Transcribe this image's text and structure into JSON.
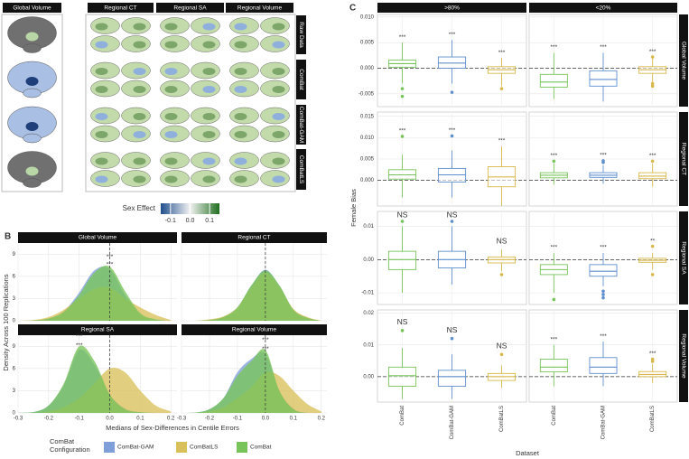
{
  "panel_labels": [
    "A",
    "B",
    "C"
  ],
  "brain_panel": {
    "columns": [
      "Global Volume",
      "Regional CT",
      "Regional SA",
      "Regional Volume"
    ],
    "rows": [
      "Raw Data",
      "ComBat",
      "ComBat-GAM",
      "ComBatLS"
    ],
    "colorbar": {
      "title": "Sex Effect",
      "lim": [
        -0.15,
        0.15
      ],
      "ticks": [
        -0.1,
        {
          "value": 0,
          "label": "0.0"
        },
        0.1
      ]
    }
  },
  "chart_data": [
    {
      "type": "density",
      "xlabel": "Medians of Sex-Differences in Centile Errors",
      "ylabel": "Density Across 100 Replications",
      "xlim": [
        -0.3,
        0.22
      ],
      "xticks": [
        -0.3,
        -0.2,
        -0.1,
        {
          "value": 0,
          "label": "0.0"
        },
        0.1,
        0.2
      ],
      "ylim": [
        0,
        10.5
      ],
      "yticks": [
        0,
        3,
        6,
        9
      ],
      "grid": true,
      "reference_x": 0,
      "legend": {
        "title": [
          "ComBat",
          "Configuration"
        ],
        "series": [
          {
            "name": "ComBat-GAM",
            "color": "#7f9fd8"
          },
          {
            "name": "ComBatLS",
            "color": "#d8c05a"
          },
          {
            "name": "ComBat",
            "color": "#78c45a"
          }
        ]
      },
      "x": [
        -0.3,
        -0.25,
        -0.2,
        -0.15,
        -0.1,
        -0.05,
        0,
        0.05,
        0.1,
        0.15,
        0.2
      ],
      "facets": [
        {
          "title": "Global Volume",
          "series": [
            {
              "values": [
                0,
                0.05,
                0.3,
                1.3,
                3.8,
                6.8,
                7,
                3.5,
                0.8,
                0.1,
                0
              ],
              "significance": "***"
            },
            {
              "values": [
                0,
                0.1,
                0.5,
                1.5,
                3,
                4.3,
                4.5,
                3,
                1.8,
                0.8,
                0.1
              ],
              "significance": "**"
            },
            {
              "values": [
                0,
                0.05,
                0.3,
                1.2,
                3.5,
                6.5,
                7.3,
                4,
                1,
                0.2,
                0
              ],
              "significance": "***"
            }
          ]
        },
        {
          "title": "Regional CT",
          "series": [
            {
              "values": [
                0,
                0,
                0.1,
                0.5,
                1.8,
                4.7,
                6.9,
                4.7,
                1.5,
                0.4,
                0
              ],
              "significance": null
            },
            {
              "values": [
                0,
                0,
                0.2,
                0.6,
                1.8,
                4.5,
                6.5,
                4.6,
                1.6,
                0.5,
                0
              ],
              "significance": null
            },
            {
              "values": [
                0,
                0,
                0.1,
                0.5,
                1.8,
                4.8,
                6.8,
                4.8,
                1.5,
                0.4,
                0
              ],
              "significance": null
            }
          ]
        },
        {
          "title": "Regional SA",
          "series": [
            {
              "values": [
                0,
                0.1,
                1,
                3.8,
                8.5,
                6.5,
                2.5,
                0.6,
                0.1,
                0,
                0
              ],
              "significance": "***"
            },
            {
              "values": [
                0,
                0,
                0.2,
                0.8,
                2,
                4,
                6,
                5.5,
                3,
                1,
                0.2
              ],
              "significance": null
            },
            {
              "values": [
                0,
                0.1,
                1,
                4,
                9,
                7,
                2.5,
                0.5,
                0.1,
                0,
                0
              ],
              "significance": "***"
            }
          ]
        },
        {
          "title": "Regional Volume",
          "series": [
            {
              "values": [
                0,
                0.05,
                0.5,
                2,
                5.5,
                7.3,
                8,
                3,
                0.6,
                0,
                0
              ],
              "significance": "***"
            },
            {
              "values": [
                0,
                0,
                0.2,
                0.8,
                2,
                3.5,
                5.5,
                5,
                3,
                1.2,
                0.2
              ],
              "significance": null
            },
            {
              "values": [
                0,
                0.05,
                0.5,
                2,
                5,
                7,
                8.5,
                3,
                0.5,
                0,
                0
              ],
              "significance": "***"
            }
          ]
        }
      ]
    },
    {
      "type": "box",
      "xlabel": "Dataset",
      "ylabel": "Female Bias",
      "categories": [
        "ComBat",
        "ComBat-GAM",
        "ComBatLS"
      ],
      "colors": [
        "#78c45a",
        "#5f8fcf",
        "#d8b84a"
      ],
      "columns": [
        ">80%",
        "<20%"
      ],
      "reference_line": 0,
      "grid": true,
      "rows": [
        {
          "title": "Global Volume",
          "ylim": [
            -0.0075,
            0.0105
          ],
          "yticks": [
            -0.005,
            {
              "value": 0,
              "label": "0.000"
            },
            0.005,
            {
              "value": 0.01,
              "label": "0.010"
            }
          ],
          "panels": [
            [
              {
                "low": -0.003,
                "q1": 0.0002,
                "median": 0.0009,
                "q3": 0.0016,
                "high": 0.005,
                "outliers": [
                  -0.004,
                  -0.0055
                ],
                "label": "***"
              },
              {
                "low": -0.003,
                "q1": 0,
                "median": 0.001,
                "q3": 0.0022,
                "high": 0.0055,
                "outliers": [
                  -0.0047
                ],
                "label": "***"
              },
              {
                "low": -0.0035,
                "q1": -0.001,
                "median": -0.0003,
                "q3": 0.0003,
                "high": 0.002,
                "outliers": [
                  -0.004
                ],
                "label": "***"
              }
            ],
            [
              {
                "low": -0.006,
                "q1": -0.0037,
                "median": -0.0027,
                "q3": -0.0012,
                "high": 0.003,
                "outliers": [],
                "label": "***"
              },
              {
                "low": -0.0065,
                "q1": -0.0035,
                "median": -0.0022,
                "q3": -0.0005,
                "high": 0.003,
                "outliers": [],
                "label": "***"
              },
              {
                "low": -0.003,
                "q1": -0.001,
                "median": -0.0003,
                "q3": 0.0003,
                "high": 0.002,
                "outliers": [
                  -0.003,
                  -0.0035,
                  0.0022
                ],
                "label": "***"
              }
            ]
          ]
        },
        {
          "title": "Regional CT",
          "ylim": [
            -0.006,
            0.016
          ],
          "yticks": [
            {
              "value": 0,
              "label": "0.000"
            },
            0.005,
            {
              "value": 0.01,
              "label": "0.010"
            },
            0.015
          ],
          "panels": [
            [
              {
                "low": -0.004,
                "q1": 0.0003,
                "median": 0.0013,
                "q3": 0.0025,
                "high": 0.006,
                "outliers": [
                  0.0103
                ],
                "label": "***"
              },
              {
                "low": -0.004,
                "q1": -0.0004,
                "median": 0.0013,
                "q3": 0.0028,
                "high": 0.007,
                "outliers": [
                  0.0104
                ],
                "label": "***"
              },
              {
                "low": -0.006,
                "q1": -0.0015,
                "median": 0.0008,
                "q3": 0.0032,
                "high": 0.008,
                "outliers": [],
                "label": "***"
              }
            ],
            [
              {
                "low": -0.001,
                "q1": 0.0006,
                "median": 0.0012,
                "q3": 0.0018,
                "high": 0.004,
                "outliers": [
                  0.0045
                ],
                "label": "***"
              },
              {
                "low": -0.0008,
                "q1": 0.0007,
                "median": 0.0012,
                "q3": 0.0018,
                "high": 0.0035,
                "outliers": [
                  0.0042,
                  0.0046
                ],
                "label": "***"
              },
              {
                "low": -0.0015,
                "q1": 0.0004,
                "median": 0.001,
                "q3": 0.0018,
                "high": 0.004,
                "outliers": [
                  0.0045
                ],
                "label": "***"
              }
            ]
          ]
        },
        {
          "title": "Regional SA",
          "ylim": [
            -0.0135,
            0.0145
          ],
          "yticks": [
            -0.01,
            {
              "value": 0,
              "label": "0.00"
            },
            0.01
          ],
          "panels": [
            [
              {
                "low": -0.01,
                "q1": -0.003,
                "median": 0,
                "q3": 0.0025,
                "high": 0.01,
                "outliers": [
                  0.0115
                ],
                "label": "NS"
              },
              {
                "low": -0.0075,
                "q1": -0.0025,
                "median": 0,
                "q3": 0.0025,
                "high": 0.01,
                "outliers": [
                  0.0115
                ],
                "label": "NS"
              },
              {
                "low": -0.0035,
                "q1": -0.001,
                "median": 0,
                "q3": 0.0008,
                "high": 0.003,
                "outliers": [
                  -0.0045
                ],
                "label": "NS"
              }
            ],
            [
              {
                "low": -0.01,
                "q1": -0.0045,
                "median": -0.003,
                "q3": -0.0015,
                "high": 0.002,
                "outliers": [
                  -0.012
                ],
                "label": "***"
              },
              {
                "low": -0.008,
                "q1": -0.005,
                "median": -0.0035,
                "q3": -0.0015,
                "high": 0.002,
                "outliers": [
                  -0.0095,
                  -0.0105,
                  -0.0115
                ],
                "label": "***"
              },
              {
                "low": -0.003,
                "q1": -0.0008,
                "median": -0.0002,
                "q3": 0.0004,
                "high": 0.002,
                "outliers": [
                  0.004,
                  -0.0045
                ],
                "label": "**"
              }
            ]
          ]
        },
        {
          "title": "Regional Volume",
          "ylim": [
            -0.008,
            0.021
          ],
          "yticks": [
            {
              "value": 0,
              "label": "0.00"
            },
            0.01,
            0.02
          ],
          "panels": [
            [
              {
                "low": -0.007,
                "q1": -0.003,
                "median": 0.0003,
                "q3": 0.003,
                "high": 0.009,
                "outliers": [
                  0.0145
                ],
                "label": "NS"
              },
              {
                "low": -0.007,
                "q1": -0.003,
                "median": 0,
                "q3": 0.002,
                "high": 0.007,
                "outliers": [
                  0.012
                ],
                "label": "NS"
              },
              {
                "low": -0.0035,
                "q1": -0.0012,
                "median": 0,
                "q3": 0.001,
                "high": 0.0035,
                "outliers": [
                  0.007
                ],
                "label": "NS"
              }
            ],
            [
              {
                "low": -0.003,
                "q1": 0.0015,
                "median": 0.003,
                "q3": 0.0055,
                "high": 0.01,
                "outliers": [],
                "label": "***"
              },
              {
                "low": -0.003,
                "q1": 0.001,
                "median": 0.003,
                "q3": 0.006,
                "high": 0.011,
                "outliers": [],
                "label": "***"
              },
              {
                "low": -0.002,
                "q1": 0,
                "median": 0.0007,
                "q3": 0.0016,
                "high": 0.004,
                "outliers": [
                  0.0048,
                  0.0055
                ],
                "label": "***"
              }
            ]
          ]
        }
      ]
    }
  ]
}
